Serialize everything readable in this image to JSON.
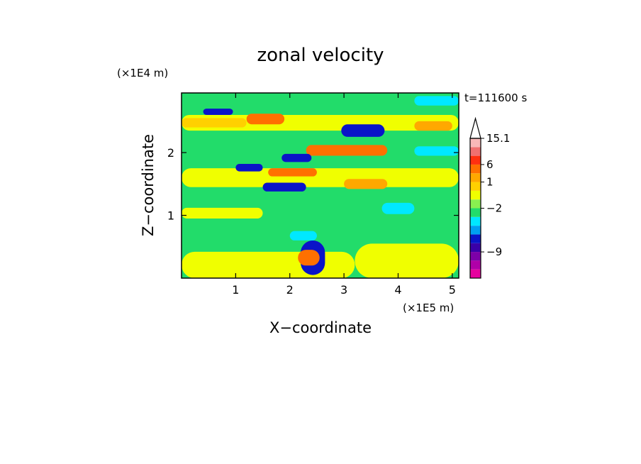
{
  "chart_data": {
    "type": "heatmap",
    "title": "zonal velocity",
    "xlabel": "X−coordinate",
    "ylabel": "Z−coordinate",
    "x_scale_label": "(×1E5 m)",
    "y_scale_label": "(×1E4 m)",
    "time_label": "t=111600 s",
    "xlim": [
      0,
      5.12
    ],
    "ylim": [
      0,
      2.95
    ],
    "x_ticks": [
      {
        "value": 1,
        "label": "1"
      },
      {
        "value": 2,
        "label": "2"
      },
      {
        "value": 3,
        "label": "3"
      },
      {
        "value": 4,
        "label": "4"
      },
      {
        "value": 5,
        "label": "5"
      }
    ],
    "y_ticks": [
      {
        "value": 1,
        "label": "1"
      },
      {
        "value": 2,
        "label": "2"
      }
    ],
    "colorbar": {
      "levels": [
        {
          "color": "#e6009e"
        },
        {
          "color": "#b000a8"
        },
        {
          "color": "#7d00a8"
        },
        {
          "color": "#3a00a8"
        },
        {
          "color": "#0a14c8"
        },
        {
          "color": "#00a0f0"
        },
        {
          "color": "#00e8ff"
        },
        {
          "color": "#22dc6a"
        },
        {
          "color": "#88f050"
        },
        {
          "color": "#f0ff00"
        },
        {
          "color": "#ffd000"
        },
        {
          "color": "#ffa800"
        },
        {
          "color": "#ff7000"
        },
        {
          "color": "#ff3010"
        },
        {
          "color": "#f07070"
        },
        {
          "color": "#f8b8b8"
        }
      ],
      "tick_labels": [
        {
          "label": "15.1",
          "level_index": 15
        },
        {
          "label": "6",
          "level_index": 12
        },
        {
          "label": "1",
          "level_index": 10
        },
        {
          "label": "−2",
          "level_index": 7
        },
        {
          "label": "−9",
          "level_index": 2
        }
      ]
    },
    "field": {
      "background": "#22dc6a",
      "regions": [
        {
          "color": "#f0ff00",
          "x": [
            0.0,
            3.2
          ],
          "z": [
            0.0,
            0.42
          ]
        },
        {
          "color": "#f0ff00",
          "x": [
            3.2,
            5.12
          ],
          "z": [
            0.0,
            0.55
          ]
        },
        {
          "color": "#f0ff00",
          "x": [
            0.0,
            1.5
          ],
          "z": [
            0.95,
            1.12
          ]
        },
        {
          "color": "#f0ff00",
          "x": [
            0.0,
            5.12
          ],
          "z": [
            1.45,
            1.75
          ]
        },
        {
          "color": "#f0ff00",
          "x": [
            0.0,
            5.12
          ],
          "z": [
            2.35,
            2.6
          ]
        },
        {
          "color": "#ffd000",
          "x": [
            0.0,
            1.2
          ],
          "z": [
            2.4,
            2.55
          ]
        },
        {
          "color": "#ff7000",
          "x": [
            1.6,
            2.5
          ],
          "z": [
            1.62,
            1.75
          ]
        },
        {
          "color": "#ff7000",
          "x": [
            2.3,
            3.8
          ],
          "z": [
            1.95,
            2.12
          ]
        },
        {
          "color": "#ff7000",
          "x": [
            1.2,
            1.9
          ],
          "z": [
            2.45,
            2.62
          ]
        },
        {
          "color": "#ffa800",
          "x": [
            3.0,
            3.8
          ],
          "z": [
            1.42,
            1.58
          ]
        },
        {
          "color": "#ffa800",
          "x": [
            4.3,
            5.0
          ],
          "z": [
            2.35,
            2.5
          ]
        },
        {
          "color": "#0a14c8",
          "x": [
            1.5,
            2.3
          ],
          "z": [
            1.38,
            1.52
          ]
        },
        {
          "color": "#0a14c8",
          "x": [
            1.85,
            2.4
          ],
          "z": [
            1.85,
            1.98
          ]
        },
        {
          "color": "#0a14c8",
          "x": [
            2.95,
            3.75
          ],
          "z": [
            2.25,
            2.45
          ]
        },
        {
          "color": "#0a14c8",
          "x": [
            0.4,
            0.95
          ],
          "z": [
            2.6,
            2.7
          ]
        },
        {
          "color": "#0a14c8",
          "x": [
            1.0,
            1.5
          ],
          "z": [
            1.7,
            1.82
          ]
        },
        {
          "color": "#0a14c8",
          "x": [
            2.2,
            2.65
          ],
          "z": [
            0.05,
            0.6
          ]
        },
        {
          "color": "#00e8ff",
          "x": [
            3.7,
            4.3
          ],
          "z": [
            1.02,
            1.2
          ]
        },
        {
          "color": "#00e8ff",
          "x": [
            4.3,
            5.12
          ],
          "z": [
            1.95,
            2.1
          ]
        },
        {
          "color": "#00e8ff",
          "x": [
            4.3,
            5.12
          ],
          "z": [
            2.75,
            2.9
          ]
        },
        {
          "color": "#00e8ff",
          "x": [
            2.0,
            2.5
          ],
          "z": [
            0.6,
            0.75
          ]
        },
        {
          "color": "#ff7000",
          "x": [
            2.15,
            2.55
          ],
          "z": [
            0.2,
            0.45
          ]
        }
      ]
    }
  }
}
